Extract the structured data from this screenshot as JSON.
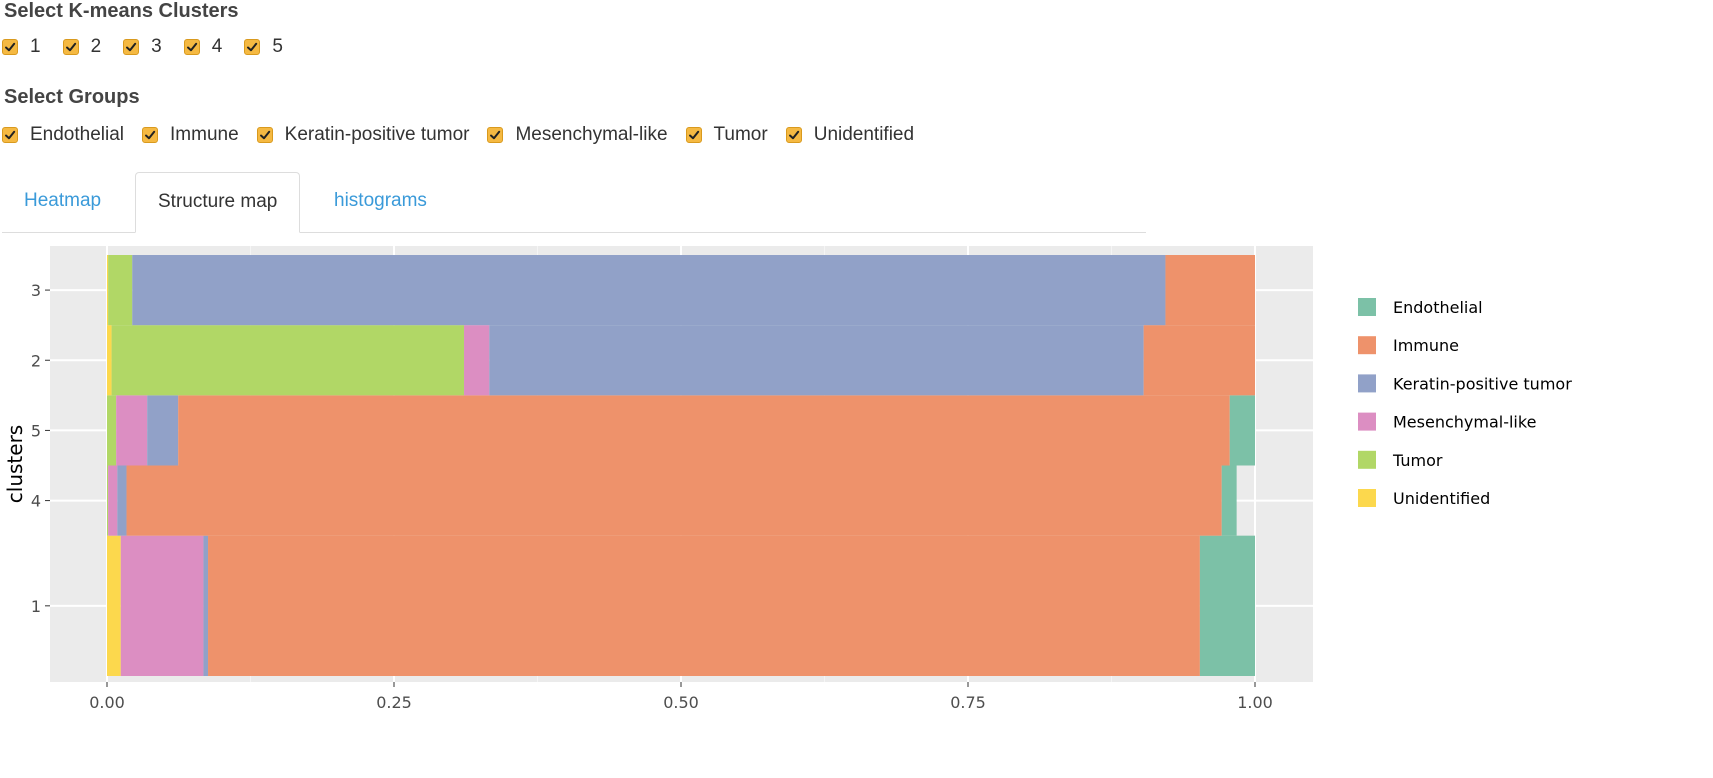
{
  "controls": {
    "clusters_title": "Select K-means Clusters",
    "clusters": [
      "1",
      "2",
      "3",
      "4",
      "5"
    ],
    "groups_title": "Select Groups",
    "groups": [
      "Endothelial",
      "Immune",
      "Keratin-positive tumor",
      "Mesenchymal-like",
      "Tumor",
      "Unidentified"
    ]
  },
  "tabs": [
    {
      "label": "Heatmap",
      "active": false
    },
    {
      "label": "Structure map",
      "active": true
    },
    {
      "label": "histograms",
      "active": false
    }
  ],
  "chart_data": {
    "type": "bar",
    "orientation": "horizontal",
    "stacked": true,
    "ylabel": "clusters",
    "xlabel": "",
    "xlim": [
      0,
      1
    ],
    "x_ticks": [
      "0.00",
      "0.25",
      "0.50",
      "0.75",
      "1.00"
    ],
    "categories": [
      "1",
      "4",
      "5",
      "2",
      "3"
    ],
    "bar_width_weights": [
      1.0,
      0.5,
      0.5,
      0.5,
      0.5
    ],
    "series": [
      {
        "name": "Unidentified",
        "color": "#fcd84d",
        "values": [
          0.012,
          0.0,
          0.0,
          0.004,
          0.001
        ]
      },
      {
        "name": "Tumor",
        "color": "#b1d766",
        "values": [
          0.0,
          0.001,
          0.008,
          0.307,
          0.021
        ]
      },
      {
        "name": "Mesenchymal-like",
        "color": "#dc8ec2",
        "values": [
          0.072,
          0.008,
          0.027,
          0.022,
          0.0
        ]
      },
      {
        "name": "Keratin-positive tumor",
        "color": "#91a1c8",
        "values": [
          0.004,
          0.008,
          0.027,
          0.57,
          0.9
        ]
      },
      {
        "name": "Immune",
        "color": "#ee926b",
        "values": [
          0.864,
          0.954,
          0.916,
          0.097,
          0.078
        ]
      },
      {
        "name": "Endothelial",
        "color": "#7cc1a7",
        "values": [
          0.048,
          0.013,
          0.022,
          0.0,
          0.0
        ]
      }
    ],
    "legend": [
      "Endothelial",
      "Immune",
      "Keratin-positive tumor",
      "Mesenchymal-like",
      "Tumor",
      "Unidentified"
    ],
    "legend_position": "right",
    "grid": true,
    "panel_background": "#ebebeb"
  }
}
